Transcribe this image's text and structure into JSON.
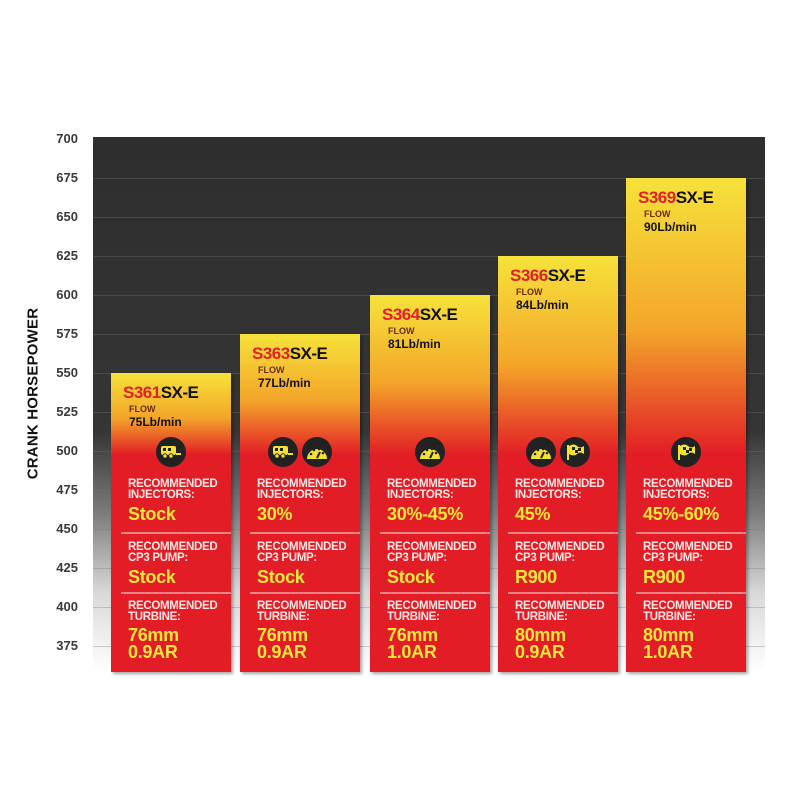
{
  "chart_data": {
    "type": "bar",
    "ylabel": "CRANK HORSEPOWER",
    "ylim": [
      358,
      700
    ],
    "yticks": [
      "700",
      "675",
      "650",
      "625",
      "600",
      "575",
      "550",
      "525",
      "500",
      "475",
      "450",
      "425",
      "400",
      "375"
    ],
    "grid": true,
    "colors": {
      "bar_top": "#f6e23a",
      "bar_bottom": "#e21d26",
      "background_top": "#2e2e2e",
      "accent_red": "#e0202a",
      "value_yellow": "#f7e83a"
    },
    "labels": {
      "flow": "FLOW",
      "injectors": [
        "RECOMMENDED",
        "INJECTORS:"
      ],
      "pump": [
        "RECOMMENDED",
        "CP3 PUMP:"
      ],
      "turbine": [
        "RECOMMENDED",
        "TURBINE:"
      ]
    },
    "bars": [
      {
        "prefix": "S361",
        "suffix": "SX-E",
        "value": 550,
        "flow": "75Lb/min",
        "icons": [
          "towing-trailer-icon"
        ],
        "injectors": "Stock",
        "pump": "Stock",
        "turbine": [
          "76mm",
          "0.9AR"
        ]
      },
      {
        "prefix": "S363",
        "suffix": "SX-E",
        "value": 575,
        "flow": "77Lb/min",
        "icons": [
          "towing-trailer-icon",
          "performance-gauge-icon"
        ],
        "injectors": "30%",
        "pump": "Stock",
        "turbine": [
          "76mm",
          "0.9AR"
        ]
      },
      {
        "prefix": "S364",
        "suffix": "SX-E",
        "value": 600,
        "flow": "81Lb/min",
        "icons": [
          "performance-gauge-icon"
        ],
        "injectors": "30%-45%",
        "pump": "Stock",
        "turbine": [
          "76mm",
          "1.0AR"
        ]
      },
      {
        "prefix": "S366",
        "suffix": "SX-E",
        "value": 625,
        "flow": "84Lb/min",
        "icons": [
          "performance-gauge-icon",
          "checkered-flag-icon"
        ],
        "injectors": "45%",
        "pump": "R900",
        "turbine": [
          "80mm",
          "0.9AR"
        ]
      },
      {
        "prefix": "S369",
        "suffix": "SX-E",
        "value": 675,
        "flow": "90Lb/min",
        "icons": [
          "checkered-flag-icon"
        ],
        "injectors": "45%-60%",
        "pump": "R900",
        "turbine": [
          "80mm",
          "1.0AR"
        ]
      }
    ]
  }
}
